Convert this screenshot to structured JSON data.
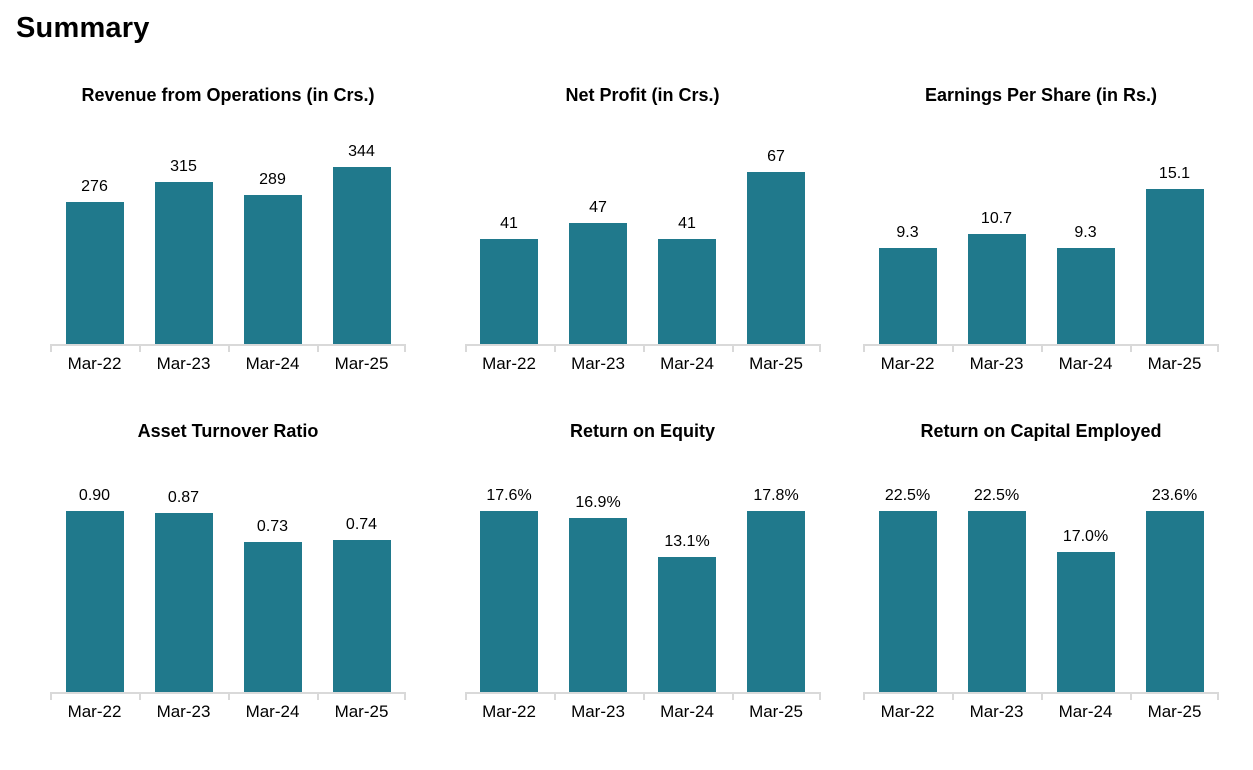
{
  "page": {
    "title": "Summary"
  },
  "theme": {
    "bar_color": "#20798C",
    "axis_color": "#D9D9D9",
    "text_color": "#000000",
    "background": "#FFFFFF"
  },
  "chart_data": [
    {
      "type": "bar",
      "title": "Revenue from Operations (in Crs.)",
      "categories": [
        "Mar-22",
        "Mar-23",
        "Mar-24",
        "Mar-25"
      ],
      "values": [
        276,
        315,
        289,
        344
      ],
      "labels": [
        "276",
        "315",
        "289",
        "344"
      ],
      "ylim": [
        0,
        400
      ],
      "grid": false,
      "legend": false
    },
    {
      "type": "bar",
      "title": "Net Profit (in Crs.)",
      "categories": [
        "Mar-22",
        "Mar-23",
        "Mar-24",
        "Mar-25"
      ],
      "values": [
        41,
        47,
        41,
        67
      ],
      "labels": [
        "41",
        "47",
        "41",
        "67"
      ],
      "ylim": [
        0,
        80
      ],
      "grid": false,
      "legend": false
    },
    {
      "type": "bar",
      "title": "Earnings Per Share (in Rs.)",
      "categories": [
        "Mar-22",
        "Mar-23",
        "Mar-24",
        "Mar-25"
      ],
      "values": [
        9.3,
        10.7,
        9.3,
        15.1
      ],
      "labels": [
        "9.3",
        "10.7",
        "9.3",
        "15.1"
      ],
      "ylim": [
        0,
        20
      ],
      "grid": false,
      "legend": false
    },
    {
      "type": "bar",
      "title": "Asset Turnover Ratio",
      "categories": [
        "Mar-22",
        "Mar-23",
        "Mar-24",
        "Mar-25"
      ],
      "values": [
        0.9,
        0.87,
        0.73,
        0.74
      ],
      "labels": [
        "0.90",
        "0.87",
        "0.73",
        "0.74"
      ],
      "ylim": [
        0,
        1.0
      ],
      "grid": false,
      "legend": false
    },
    {
      "type": "bar",
      "title": "Return on Equity",
      "categories": [
        "Mar-22",
        "Mar-23",
        "Mar-24",
        "Mar-25"
      ],
      "values": [
        17.6,
        16.9,
        13.1,
        17.8
      ],
      "labels": [
        "17.6%",
        "16.9%",
        "13.1%",
        "17.8%"
      ],
      "ylim": [
        0,
        20
      ],
      "grid": false,
      "legend": false
    },
    {
      "type": "bar",
      "title": "Return on Capital Employed",
      "categories": [
        "Mar-22",
        "Mar-23",
        "Mar-24",
        "Mar-25"
      ],
      "values": [
        22.5,
        22.5,
        17.0,
        23.6
      ],
      "labels": [
        "22.5%",
        "22.5%",
        "17.0%",
        "23.6%"
      ],
      "ylim": [
        0,
        25
      ],
      "grid": false,
      "legend": false
    }
  ]
}
